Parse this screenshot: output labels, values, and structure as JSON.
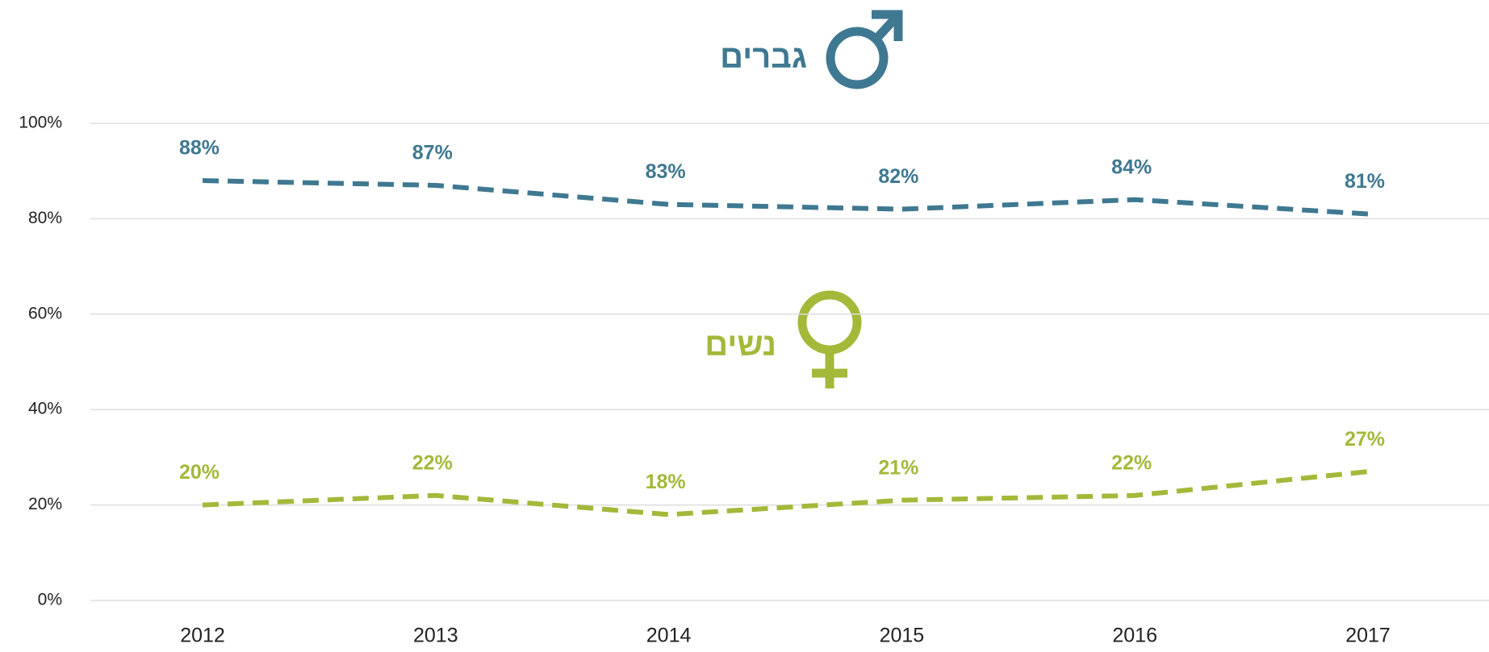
{
  "chart_data": {
    "type": "line",
    "categories": [
      "2012",
      "2013",
      "2014",
      "2015",
      "2016",
      "2017"
    ],
    "series": [
      {
        "name": "גברים",
        "color": "#3f7891",
        "values": [
          88,
          87,
          83,
          82,
          84,
          81
        ],
        "value_labels": [
          "88%",
          "87%",
          "83%",
          "82%",
          "84%",
          "81%"
        ]
      },
      {
        "name": "נשים",
        "color": "#a4b83a",
        "values": [
          20,
          22,
          18,
          21,
          22,
          27
        ],
        "value_labels": [
          "20%",
          "22%",
          "18%",
          "21%",
          "22%",
          "27%"
        ]
      }
    ],
    "ylim": [
      0,
      100
    ],
    "yticks": [
      {
        "value": 0,
        "label": "0%"
      },
      {
        "value": 20,
        "label": "20%"
      },
      {
        "value": 40,
        "label": "40%"
      },
      {
        "value": 60,
        "label": "60%"
      },
      {
        "value": 80,
        "label": "80%"
      },
      {
        "value": 100,
        "label": "100%"
      }
    ],
    "grid": true
  }
}
